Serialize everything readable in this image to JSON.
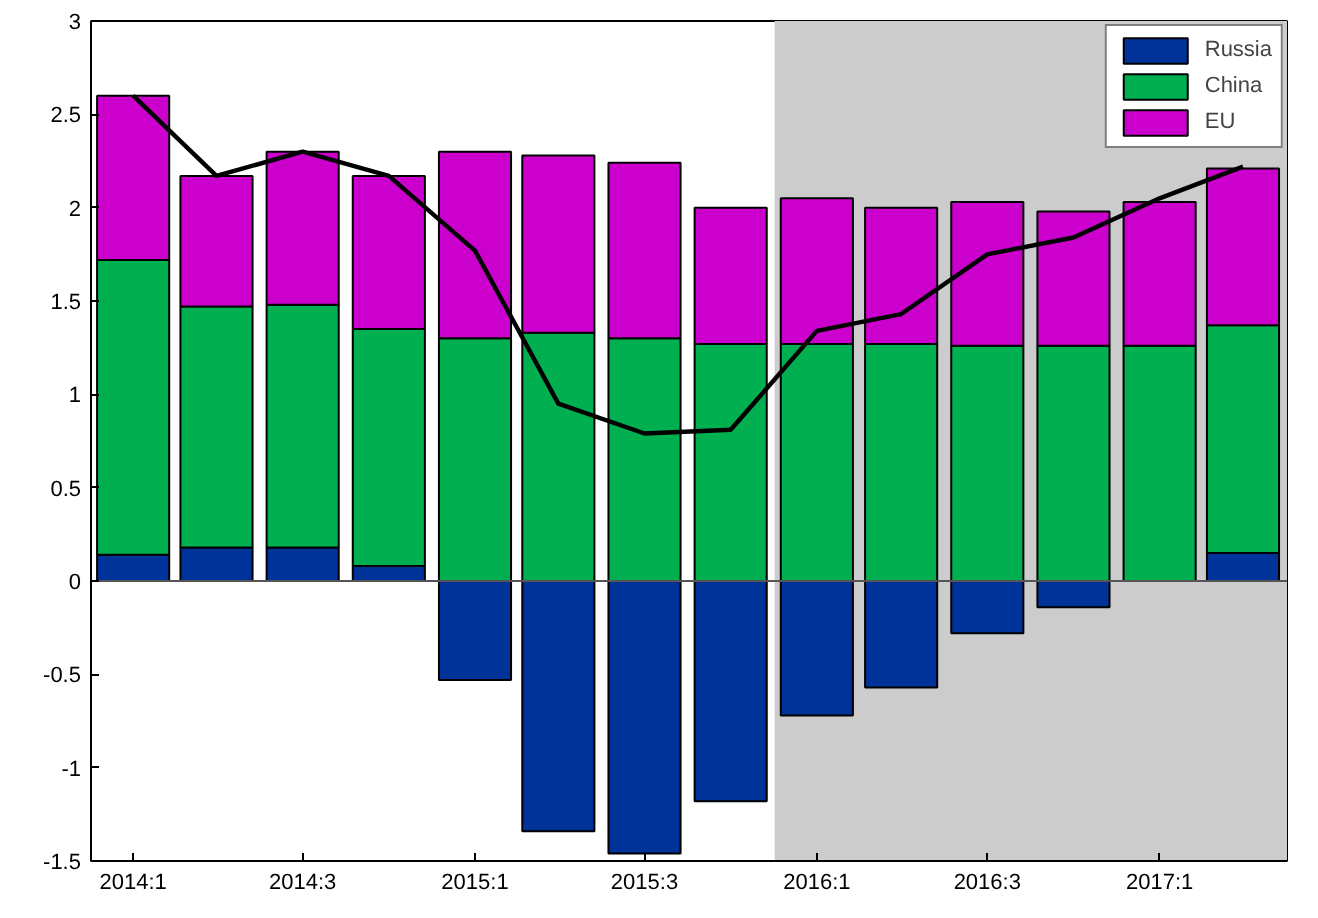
{
  "chart_data": {
    "type": "bar",
    "stacked": true,
    "x": [
      "2014-02-15",
      "2014-05-15",
      "2014-08-15",
      "2014-11-15",
      "2015-02-15",
      "2015-05-15",
      "2015-08-15",
      "2015-11-15",
      "2016-02-15",
      "2016-05-15",
      "2016-08-15",
      "2016-11-15",
      "2017-02-15",
      "2017-05-15"
    ],
    "xlim": [
      "2014-01-01",
      "2017-07-01"
    ],
    "xticks": [
      {
        "value": "2014-02-15",
        "label": "2014:1"
      },
      {
        "value": "2014-08-15",
        "label": "2014:3"
      },
      {
        "value": "2015-02-15",
        "label": "2015:1"
      },
      {
        "value": "2015-08-15",
        "label": "2015:3"
      },
      {
        "value": "2016-02-15",
        "label": "2016:1"
      },
      {
        "value": "2016-08-15",
        "label": "2016:3"
      },
      {
        "value": "2017-02-15",
        "label": "2017:1"
      }
    ],
    "ylim": [
      -1.5,
      3
    ],
    "yticks": [
      -1.5,
      -1,
      -0.5,
      0,
      0.5,
      1,
      1.5,
      2,
      2.5,
      3
    ],
    "series": [
      {
        "name": "Russia",
        "color": "#003399",
        "values": [
          0.14,
          0.18,
          0.18,
          0.08,
          -0.53,
          -1.34,
          -1.46,
          -1.18,
          -0.72,
          -0.57,
          -0.28,
          -0.14,
          0,
          0.15
        ]
      },
      {
        "name": "China",
        "color": "#00b050",
        "values": [
          1.58,
          1.29,
          1.3,
          1.27,
          1.3,
          1.33,
          1.3,
          1.27,
          1.27,
          1.27,
          1.26,
          1.26,
          1.26,
          1.22
        ]
      },
      {
        "name": "EU",
        "color": "#cc00cc",
        "values": [
          0.88,
          0.7,
          0.82,
          0.82,
          1.0,
          0.95,
          0.94,
          0.73,
          0.78,
          0.73,
          0.77,
          0.72,
          0.77,
          0.84
        ]
      },
      {
        "type": "line",
        "color": "#000000",
        "values": [
          2.6,
          2.17,
          2.3,
          2.17,
          1.77,
          0.95,
          0.79,
          0.81,
          1.34,
          1.43,
          1.75,
          1.84,
          2.05,
          2.22
        ]
      }
    ],
    "bands": [
      {
        "axis": "x",
        "from": "2016-01-01",
        "to": "2017-07-01",
        "color": "#cccccc"
      }
    ],
    "ref_lines": [
      {
        "axis": "y",
        "value": 0,
        "color": "#555555"
      }
    ],
    "legend": "top right",
    "grid": false
  }
}
